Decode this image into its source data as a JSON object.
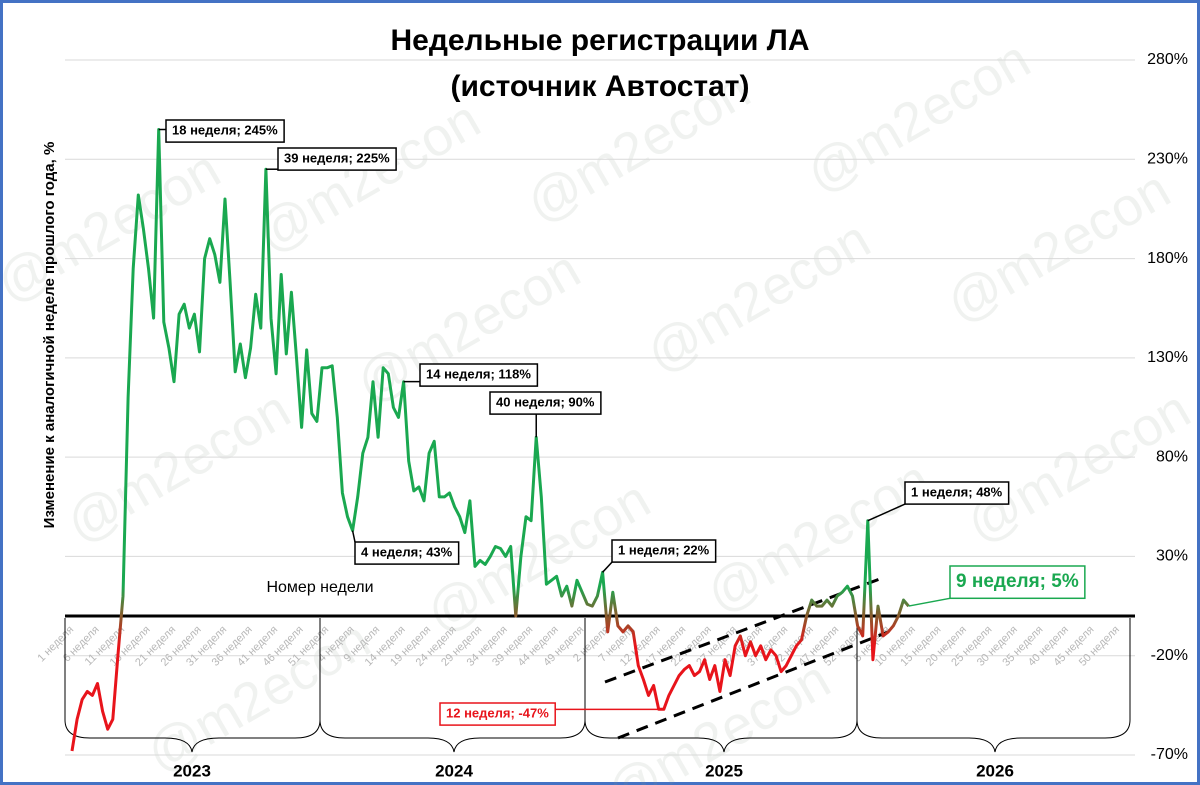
{
  "chart_data": {
    "type": "line",
    "title": "Недельные регистрации ЛА",
    "subtitle": "(источник Автостат)",
    "y_label": "Изменение к аналогичной неделе прошлого года, %",
    "x_label": "Номер недели",
    "watermark": "@m2econ",
    "years": [
      "2023",
      "2024",
      "2025",
      "2026"
    ],
    "positive_color": "#1aa850",
    "negative_color": "#e8141b",
    "ylim": [
      -70,
      280
    ],
    "yticks": [
      {
        "value": -70,
        "label": "-70%"
      },
      {
        "value": -20,
        "label": "-20%"
      },
      {
        "value": 30,
        "label": "30%"
      },
      {
        "value": 80,
        "label": "80%"
      },
      {
        "value": 130,
        "label": "130%"
      },
      {
        "value": 180,
        "label": "180%"
      },
      {
        "value": 230,
        "label": "230%"
      },
      {
        "value": 280,
        "label": "280%"
      }
    ],
    "grid": true,
    "categories": [
      "1 неделя",
      null,
      null,
      null,
      null,
      "6 неделя",
      null,
      null,
      null,
      null,
      "11 неделя",
      null,
      null,
      null,
      null,
      "16 неделя",
      null,
      null,
      null,
      null,
      "21 неделя",
      null,
      null,
      null,
      null,
      "26 неделя",
      null,
      null,
      null,
      null,
      "31 неделя",
      null,
      null,
      null,
      null,
      "36 неделя",
      null,
      null,
      null,
      null,
      "41 неделя",
      null,
      null,
      null,
      null,
      "46 неделя",
      null,
      null,
      null,
      null,
      "51 неделя",
      null,
      null,
      null,
      null,
      "4 неделя",
      null,
      null,
      null,
      null,
      "9 неделя",
      null,
      null,
      null,
      null,
      "14 неделя",
      null,
      null,
      null,
      null,
      "19 неделя",
      null,
      null,
      null,
      null,
      "24 неделя",
      null,
      null,
      null,
      null,
      "29 неделя",
      null,
      null,
      null,
      null,
      "34 неделя",
      null,
      null,
      null,
      null,
      "39 неделя",
      null,
      null,
      null,
      null,
      "44 неделя",
      null,
      null,
      null,
      null,
      "49 неделя",
      null,
      null,
      null,
      null,
      "2 неделя",
      null,
      null,
      null,
      null,
      "7 неделя",
      null,
      null,
      null,
      null,
      "12 неделя",
      null,
      null,
      null,
      null,
      "17 неделя",
      null,
      null,
      null,
      null,
      "22 неделя",
      null,
      null,
      null,
      null,
      "27 неделя",
      null,
      null,
      null,
      null,
      "32 неделя",
      null,
      null,
      null,
      null,
      "37 неделя",
      null,
      null,
      null,
      null,
      "42 неделя",
      null,
      null,
      null,
      null,
      "47 неделя",
      null,
      null,
      null,
      null,
      "52 неделя",
      null,
      null,
      null,
      null,
      "5 неделя",
      null,
      null,
      null,
      null,
      "10 неделя",
      null,
      null,
      null,
      null,
      "15 неделя",
      null,
      null,
      null,
      null,
      "20 неделя",
      null,
      null,
      null,
      null,
      "25 неделя",
      null,
      null,
      null,
      null,
      "30 неделя",
      null,
      null,
      null,
      null,
      "35 неделя",
      null,
      null,
      null,
      null,
      "40 неделя",
      null,
      null,
      null,
      null,
      "45 неделя",
      null,
      null,
      null,
      null,
      "50 неделя",
      null,
      null
    ],
    "values": [
      -68,
      -52,
      -42,
      -38,
      -40,
      -34,
      -48,
      -57,
      -52,
      -20,
      10,
      110,
      175,
      212,
      195,
      175,
      150,
      245,
      148,
      135,
      118,
      152,
      157,
      145,
      152,
      133,
      180,
      190,
      182,
      168,
      210,
      168,
      123,
      137,
      120,
      135,
      162,
      145,
      225,
      150,
      122,
      172,
      132,
      163,
      130,
      95,
      134,
      102,
      98,
      125,
      125,
      126,
      100,
      62,
      50,
      43,
      60,
      82,
      90,
      118,
      90,
      125,
      122,
      105,
      100,
      118,
      78,
      63,
      65,
      58,
      82,
      88,
      60,
      60,
      62,
      55,
      50,
      42,
      58,
      25,
      28,
      26,
      30,
      35,
      34,
      30,
      35,
      0,
      30,
      50,
      48,
      90,
      60,
      16,
      18,
      20,
      10,
      15,
      5,
      18,
      12,
      6,
      5,
      10,
      22,
      -8,
      12,
      -5,
      -8,
      -5,
      -8,
      -25,
      -32,
      -40,
      -35,
      -47,
      -47,
      -40,
      -35,
      -30,
      -27,
      -25,
      -30,
      -28,
      -22,
      -32,
      -25,
      -38,
      -22,
      -30,
      -15,
      -10,
      -20,
      -13,
      -20,
      -15,
      -22,
      -17,
      -20,
      -28,
      -25,
      -20,
      -15,
      -12,
      0,
      8,
      5,
      5,
      8,
      5,
      10,
      12,
      15,
      10,
      -5,
      -10,
      48,
      -22,
      5,
      -10,
      -8,
      -5,
      0,
      8,
      5,
      null,
      null,
      null,
      null,
      null,
      null,
      null,
      null,
      null,
      null,
      null,
      null,
      null,
      null,
      null,
      null,
      null,
      null,
      null,
      null,
      null,
      null,
      null,
      null,
      null,
      null,
      null,
      null,
      null,
      null,
      null,
      null,
      null,
      null,
      null,
      null,
      null,
      null,
      null,
      null,
      null,
      null,
      null
    ],
    "annotations": [
      {
        "text": "18 неделя; 245%",
        "color": "#000000"
      },
      {
        "text": "39 неделя; 225%",
        "color": "#000000"
      },
      {
        "text": "4 неделя; 43%",
        "color": "#000000"
      },
      {
        "text": "14 неделя; 118%",
        "color": "#000000"
      },
      {
        "text": "40 неделя; 90%",
        "color": "#000000"
      },
      {
        "text": "1 неделя; 22%",
        "color": "#000000"
      },
      {
        "text": "1 неделя; 48%",
        "color": "#000000"
      },
      {
        "text": "12 неделя; -47%",
        "color": "#e8141b"
      },
      {
        "text": "9 неделя; 5%",
        "color": "#1aa850"
      }
    ]
  }
}
